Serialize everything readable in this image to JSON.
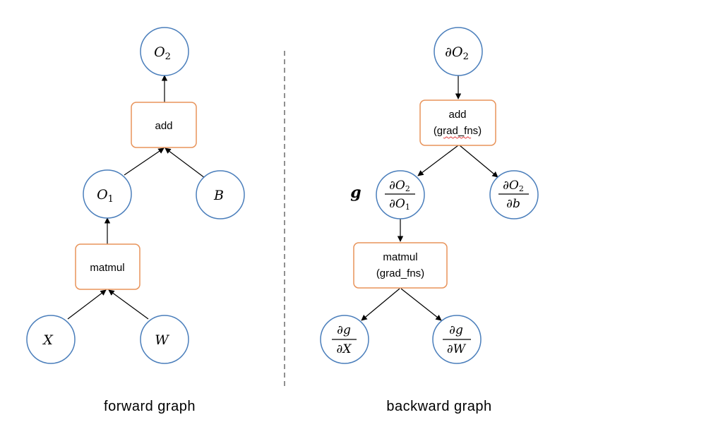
{
  "forward": {
    "caption": "forward graph",
    "nodes": {
      "o2": {
        "base": "O",
        "sub": "2"
      },
      "add": {
        "label": "add"
      },
      "o1": {
        "base": "O",
        "sub": "1"
      },
      "b": {
        "text": "B"
      },
      "matmul": {
        "label": "matmul"
      },
      "x": {
        "text": "X"
      },
      "w": {
        "text": "W"
      }
    }
  },
  "backward": {
    "caption": "backward graph",
    "nodes": {
      "dO2": {
        "d": "∂",
        "base": "O",
        "sub": "2"
      },
      "add": {
        "label": "add",
        "sub_label": "(grad_fns)"
      },
      "dO2_dO1": {
        "num_d": "∂",
        "num_base": "O",
        "num_sub": "2",
        "den_d": "∂",
        "den_base": "O",
        "den_sub": "1"
      },
      "dO2_db": {
        "num_d": "∂",
        "num_base": "O",
        "num_sub": "2",
        "den_d": "∂",
        "den_base": "b"
      },
      "g_label": "g",
      "matmul": {
        "label": "matmul",
        "sub_label": "(grad_fns)"
      },
      "dg_dX": {
        "num_d": "∂",
        "num_base": "g",
        "den_d": "∂",
        "den_base": "X"
      },
      "dg_dW": {
        "num_d": "∂",
        "num_base": "g",
        "den_d": "∂",
        "den_base": "W"
      }
    }
  },
  "colors": {
    "circle_stroke": "#4a7ebb",
    "box_stroke": "#e8935a",
    "arrow": "#000000",
    "divider": "#555555",
    "squiggle": "#e03030"
  }
}
